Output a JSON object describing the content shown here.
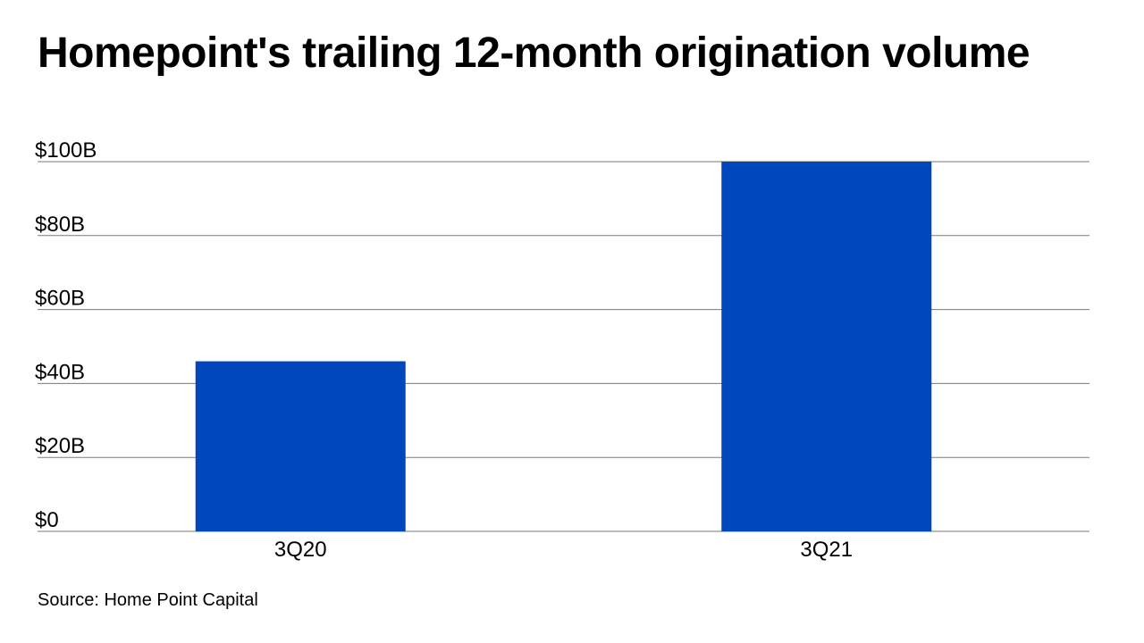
{
  "chart_data": {
    "type": "bar",
    "title": "Homepoint's trailing 12-month origination volume",
    "categories": [
      "3Q20",
      "3Q21"
    ],
    "values": [
      46,
      100
    ],
    "unit": "billion USD",
    "ylim": [
      0,
      100
    ],
    "yticks": [
      {
        "value": 0,
        "label": "$0"
      },
      {
        "value": 20,
        "label": "$20B"
      },
      {
        "value": 40,
        "label": "$40B"
      },
      {
        "value": 60,
        "label": "$60B"
      },
      {
        "value": 80,
        "label": "$80B"
      },
      {
        "value": 100,
        "label": "$100B"
      }
    ],
    "xlabel": "",
    "ylabel": "",
    "grid": true,
    "legend": null,
    "source": "Source: Home Point Capital"
  },
  "colors": {
    "bar": "#0047BB",
    "grid": "#7a7a7a",
    "text": "#000000"
  }
}
